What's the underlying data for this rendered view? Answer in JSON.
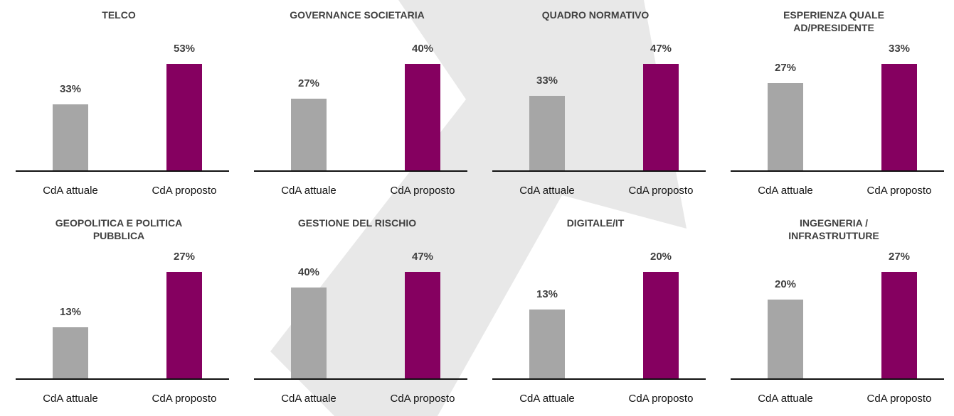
{
  "chart_data": [
    {
      "type": "bar",
      "title": "TELCO",
      "categories": [
        "CdA attuale",
        "CdA proposto"
      ],
      "values": [
        33,
        53
      ],
      "value_labels": [
        "33%",
        "53%"
      ],
      "colors": [
        "#a6a6a6",
        "#850060"
      ]
    },
    {
      "type": "bar",
      "title": "GOVERNANCE SOCIETARIA",
      "categories": [
        "CdA attuale",
        "CdA proposto"
      ],
      "values": [
        27,
        40
      ],
      "value_labels": [
        "27%",
        "40%"
      ],
      "colors": [
        "#a6a6a6",
        "#850060"
      ]
    },
    {
      "type": "bar",
      "title": "QUADRO NORMATIVO",
      "categories": [
        "CdA attuale",
        "CdA proposto"
      ],
      "values": [
        33,
        47
      ],
      "value_labels": [
        "33%",
        "47%"
      ],
      "colors": [
        "#a6a6a6",
        "#850060"
      ]
    },
    {
      "type": "bar",
      "title": "ESPERIENZA QUALE AD/PRESIDENTE",
      "categories": [
        "CdA attuale",
        "CdA proposto"
      ],
      "values": [
        27,
        33
      ],
      "value_labels": [
        "27%",
        "33%"
      ],
      "colors": [
        "#a6a6a6",
        "#850060"
      ]
    },
    {
      "type": "bar",
      "title": "GEOPOLITICA E POLITICA PUBBLICA",
      "categories": [
        "CdA attuale",
        "CdA proposto"
      ],
      "values": [
        13,
        27
      ],
      "value_labels": [
        "13%",
        "27%"
      ],
      "colors": [
        "#a6a6a6",
        "#850060"
      ]
    },
    {
      "type": "bar",
      "title": "GESTIONE DEL RISCHIO",
      "categories": [
        "CdA attuale",
        "CdA proposto"
      ],
      "values": [
        40,
        47
      ],
      "value_labels": [
        "40%",
        "47%"
      ],
      "colors": [
        "#a6a6a6",
        "#850060"
      ]
    },
    {
      "type": "bar",
      "title": "DIGITALE/IT",
      "categories": [
        "CdA attuale",
        "CdA proposto"
      ],
      "values": [
        13,
        20
      ],
      "value_labels": [
        "13%",
        "20%"
      ],
      "colors": [
        "#a6a6a6",
        "#850060"
      ]
    },
    {
      "type": "bar",
      "title": "INGEGNERIA / INFRASTRUTTURE",
      "categories": [
        "CdA attuale",
        "CdA proposto"
      ],
      "values": [
        20,
        27
      ],
      "value_labels": [
        "20%",
        "27%"
      ],
      "colors": [
        "#a6a6a6",
        "#850060"
      ]
    }
  ]
}
